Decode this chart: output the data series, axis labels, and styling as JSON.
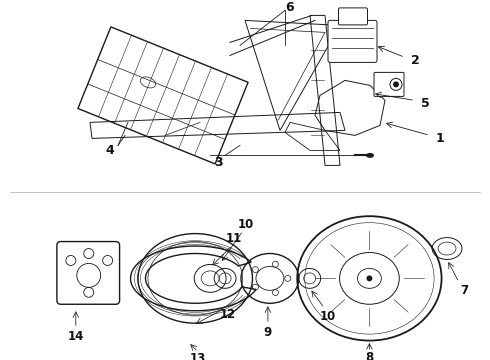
{
  "bg_color": "#ffffff",
  "line_color": "#1a1a1a",
  "label_color": "#111111",
  "fig_w": 4.9,
  "fig_h": 3.6,
  "dpi": 100
}
